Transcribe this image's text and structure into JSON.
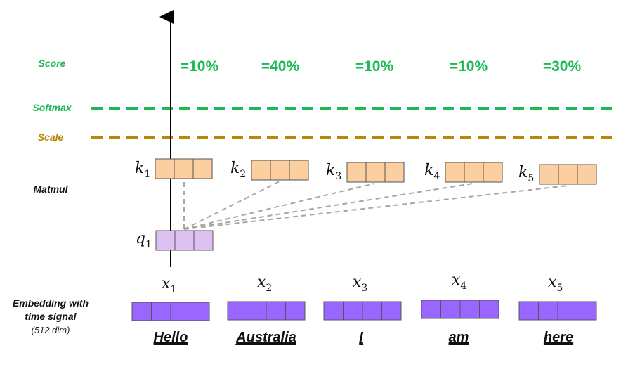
{
  "labels": {
    "score": "Score",
    "softmax": "Softmax",
    "scale": "Scale",
    "matmul": "Matmul",
    "embedding_line1": "Embedding with",
    "embedding_line2": "time signal",
    "embedding_dim": "(512 dim)"
  },
  "scores": [
    "=10%",
    "=40%",
    "=10%",
    "=10%",
    "=30%"
  ],
  "query": {
    "var": "q",
    "sub": "1"
  },
  "keys": [
    {
      "var": "k",
      "sub": "1"
    },
    {
      "var": "k",
      "sub": "2"
    },
    {
      "var": "k",
      "sub": "3"
    },
    {
      "var": "k",
      "sub": "4"
    },
    {
      "var": "k",
      "sub": "5"
    }
  ],
  "inputs": [
    {
      "var": "x",
      "sub": "1"
    },
    {
      "var": "x",
      "sub": "2"
    },
    {
      "var": "x",
      "sub": "3"
    },
    {
      "var": "x",
      "sub": "4"
    },
    {
      "var": "x",
      "sub": "5"
    }
  ],
  "words": [
    "Hello",
    "Australia",
    "I",
    "am",
    "here"
  ],
  "colors": {
    "green": "#1db954",
    "gold": "#b8860b",
    "key_fill": "#fbcf9f",
    "query_fill": "#dcc1f0",
    "embed_fill": "#9966ff",
    "connector": "#a6a6a6"
  }
}
